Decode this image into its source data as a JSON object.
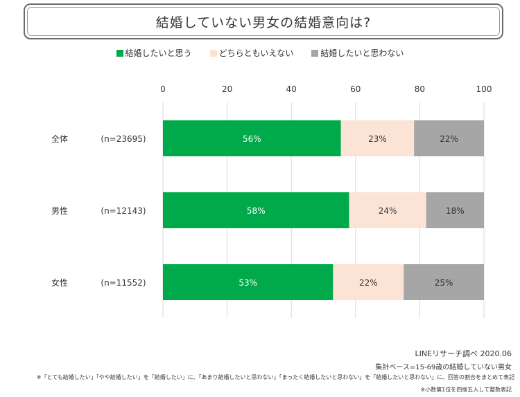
{
  "title": "結婚していない男女の結婚意向は?",
  "colors": {
    "series1": "#00aa4a",
    "series2": "#fbe4d6",
    "series3": "#a6a6a6",
    "grid": "#d9d9d9"
  },
  "chart_data": {
    "type": "bar",
    "orientation": "horizontal",
    "stacked": true,
    "categories": [
      "全体",
      "男性",
      "女性"
    ],
    "category_sample_sizes": [
      "(n=23695)",
      "(n=12143)",
      "(n=11552)"
    ],
    "series": [
      {
        "name": "結婚したいと思う",
        "values": [
          56,
          58,
          53
        ],
        "labels": [
          "56%",
          "58%",
          "53%"
        ]
      },
      {
        "name": "どちらともいえない",
        "values": [
          23,
          24,
          22
        ],
        "labels": [
          "23%",
          "24%",
          "22%"
        ]
      },
      {
        "name": "結婚したいと思わない",
        "values": [
          22,
          18,
          25
        ],
        "labels": [
          "22%",
          "18%",
          "25%"
        ]
      }
    ],
    "xlim": [
      0,
      100
    ],
    "xticks": [
      0,
      20,
      40,
      60,
      80,
      100
    ],
    "grid": true,
    "legend": "top"
  },
  "footer": {
    "source": "LINEリサーチ調べ 2020.06",
    "base": "集計ベース=15-69歳の結婚していない男女",
    "note1": "※「とても結婚したい」「やや結婚したい」を「結婚したい」に、「あまり結婚したいと思わない」「まったく結婚したいと思わない」を「結婚したいと思わない」に、回答の割合をまとめて表記",
    "note2": "※小数第1位を四捨五入して整数表記"
  }
}
